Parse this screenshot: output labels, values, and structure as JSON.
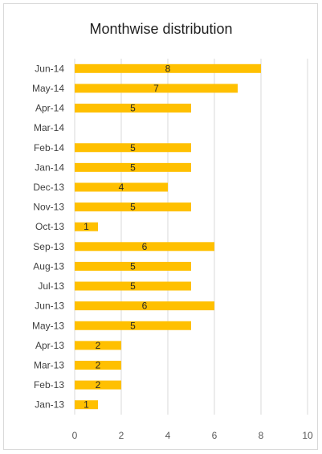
{
  "chart_data": {
    "type": "bar",
    "orientation": "horizontal",
    "title": "Monthwise distribution",
    "categories": [
      "Jun-14",
      "May-14",
      "Apr-14",
      "Mar-14",
      "Feb-14",
      "Jan-14",
      "Dec-13",
      "Nov-13",
      "Oct-13",
      "Sep-13",
      "Aug-13",
      "Jul-13",
      "Jun-13",
      "May-13",
      "Apr-13",
      "Mar-13",
      "Feb-13",
      "Jan-13"
    ],
    "values": [
      8,
      7,
      5,
      null,
      5,
      5,
      4,
      5,
      1,
      6,
      5,
      5,
      6,
      5,
      2,
      2,
      2,
      1
    ],
    "xlim": [
      0,
      10
    ],
    "xticks": [
      0,
      2,
      4,
      6,
      8,
      10
    ],
    "grid": true,
    "bar_color": "#FFC000",
    "grid_color": "#d9d9d9"
  }
}
